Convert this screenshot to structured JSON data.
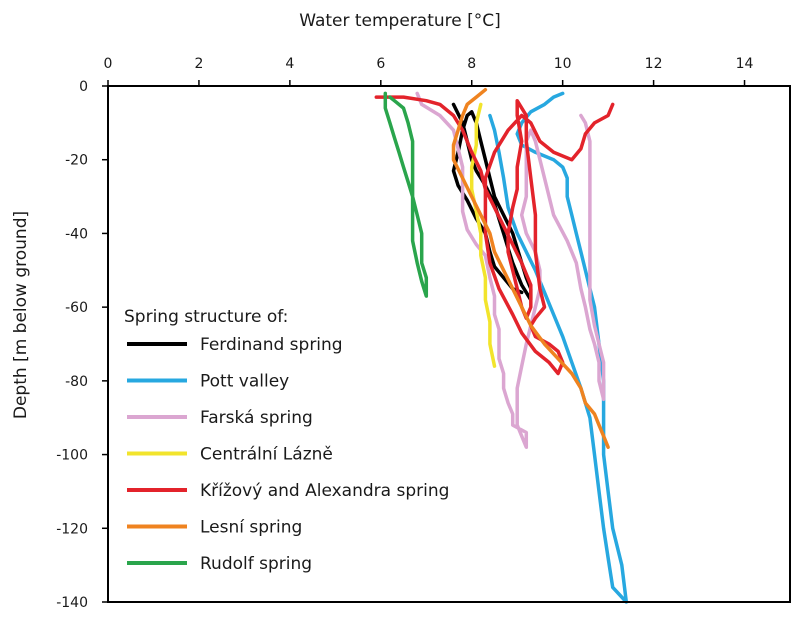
{
  "chart_data": {
    "type": "line",
    "title": "",
    "xlabel": "Water temperature [°C]",
    "ylabel": "Depth [m below ground]",
    "xlim": [
      0,
      15
    ],
    "ylim": [
      -140,
      0
    ],
    "x_ticks": [
      0,
      2,
      4,
      6,
      8,
      10,
      12,
      14
    ],
    "x_tick_labels": [
      "0",
      "2",
      "4",
      "6",
      "8",
      "10",
      "12",
      "14"
    ],
    "y_ticks": [
      0,
      -20,
      -40,
      -60,
      -80,
      -100,
      -120,
      -140
    ],
    "y_tick_labels": [
      "0",
      "-20",
      "-40",
      "-60",
      "-80",
      "-100",
      "-120",
      "-140"
    ],
    "x_axis_position": "top",
    "grid": false,
    "legend": {
      "title": "Spring structure of:",
      "position": "bottom-left"
    },
    "series": [
      {
        "name": "Ferdinand spring",
        "color": "#000000",
        "points": [
          [
            7.6,
            -5
          ],
          [
            7.8,
            -10
          ],
          [
            7.9,
            -15
          ],
          [
            8.0,
            -20
          ],
          [
            8.1,
            -23
          ],
          [
            8.3,
            -27
          ],
          [
            8.5,
            -32
          ],
          [
            8.6,
            -36
          ],
          [
            8.7,
            -40
          ],
          [
            8.8,
            -44
          ],
          [
            8.9,
            -48
          ],
          [
            9.0,
            -51
          ],
          [
            9.1,
            -54
          ],
          [
            9.2,
            -56
          ],
          [
            9.3,
            -58
          ],
          [
            9.3,
            -55
          ],
          [
            9.2,
            -52
          ],
          [
            9.1,
            -48
          ],
          [
            9.0,
            -44
          ],
          [
            8.9,
            -40
          ],
          [
            8.7,
            -35
          ],
          [
            8.5,
            -30
          ],
          [
            8.4,
            -25
          ],
          [
            8.3,
            -20
          ],
          [
            8.2,
            -15
          ],
          [
            8.1,
            -10
          ],
          [
            8.0,
            -7
          ],
          [
            7.9,
            -8
          ],
          [
            7.8,
            -12
          ],
          [
            7.7,
            -18
          ],
          [
            7.6,
            -23
          ],
          [
            7.7,
            -27
          ],
          [
            7.9,
            -31
          ],
          [
            8.1,
            -36
          ],
          [
            8.3,
            -40
          ],
          [
            8.4,
            -45
          ],
          [
            8.5,
            -49
          ],
          [
            8.7,
            -52
          ],
          [
            8.9,
            -55
          ],
          [
            9.1,
            -56
          ]
        ]
      },
      {
        "name": "Pott valley",
        "color": "#27a8e0",
        "points": [
          [
            10.0,
            -2
          ],
          [
            9.8,
            -3
          ],
          [
            9.6,
            -5
          ],
          [
            9.3,
            -7
          ],
          [
            9.1,
            -10
          ],
          [
            9.0,
            -13
          ],
          [
            9.1,
            -16
          ],
          [
            9.4,
            -18
          ],
          [
            9.8,
            -20
          ],
          [
            10.0,
            -22
          ],
          [
            10.1,
            -25
          ],
          [
            10.1,
            -30
          ],
          [
            10.2,
            -35
          ],
          [
            10.3,
            -40
          ],
          [
            10.4,
            -45
          ],
          [
            10.5,
            -50
          ],
          [
            10.6,
            -55
          ],
          [
            10.7,
            -60
          ],
          [
            10.8,
            -70
          ],
          [
            10.9,
            -80
          ],
          [
            10.9,
            -90
          ],
          [
            10.9,
            -100
          ],
          [
            11.0,
            -110
          ],
          [
            11.1,
            -120
          ],
          [
            11.3,
            -130
          ],
          [
            11.4,
            -140
          ],
          [
            11.1,
            -136
          ],
          [
            11.0,
            -128
          ],
          [
            10.9,
            -120
          ],
          [
            10.8,
            -110
          ],
          [
            10.7,
            -100
          ],
          [
            10.6,
            -90
          ],
          [
            10.4,
            -82
          ],
          [
            10.2,
            -75
          ],
          [
            10.0,
            -68
          ],
          [
            9.8,
            -62
          ],
          [
            9.6,
            -56
          ],
          [
            9.4,
            -50
          ],
          [
            9.2,
            -45
          ],
          [
            9.0,
            -40
          ],
          [
            8.8,
            -33
          ],
          [
            8.7,
            -25
          ],
          [
            8.6,
            -18
          ],
          [
            8.5,
            -12
          ],
          [
            8.4,
            -8
          ]
        ]
      },
      {
        "name": "Farská spring",
        "color": "#dba6d1",
        "points": [
          [
            6.8,
            -2
          ],
          [
            6.9,
            -5
          ],
          [
            7.3,
            -8
          ],
          [
            7.6,
            -12
          ],
          [
            7.7,
            -17
          ],
          [
            7.8,
            -22
          ],
          [
            7.8,
            -28
          ],
          [
            7.8,
            -34
          ],
          [
            7.9,
            -39
          ],
          [
            8.1,
            -43
          ],
          [
            8.3,
            -46
          ],
          [
            8.4,
            -52
          ],
          [
            8.5,
            -57
          ],
          [
            8.5,
            -62
          ],
          [
            8.6,
            -66
          ],
          [
            8.6,
            -70
          ],
          [
            8.6,
            -74
          ],
          [
            8.7,
            -78
          ],
          [
            8.7,
            -82
          ],
          [
            8.8,
            -86
          ],
          [
            8.9,
            -89
          ],
          [
            8.9,
            -92
          ],
          [
            9.2,
            -94
          ],
          [
            9.2,
            -97
          ],
          [
            9.2,
            -98
          ],
          [
            9.1,
            -95
          ],
          [
            9.0,
            -92
          ],
          [
            9.0,
            -88
          ],
          [
            9.0,
            -82
          ],
          [
            9.1,
            -76
          ],
          [
            9.2,
            -70
          ],
          [
            9.3,
            -65
          ],
          [
            9.4,
            -60
          ],
          [
            9.5,
            -55
          ],
          [
            9.5,
            -50
          ],
          [
            9.4,
            -45
          ],
          [
            9.2,
            -40
          ],
          [
            9.1,
            -35
          ],
          [
            9.2,
            -30
          ],
          [
            9.2,
            -25
          ],
          [
            9.2,
            -20
          ],
          [
            9.2,
            -15
          ],
          [
            9.3,
            -12
          ],
          [
            9.4,
            -15
          ],
          [
            9.6,
            -25
          ],
          [
            9.8,
            -35
          ],
          [
            10.1,
            -42
          ],
          [
            10.3,
            -48
          ],
          [
            10.4,
            -55
          ],
          [
            10.5,
            -60
          ],
          [
            10.6,
            -66
          ],
          [
            10.7,
            -70
          ],
          [
            10.8,
            -75
          ],
          [
            10.8,
            -80
          ],
          [
            10.9,
            -85
          ],
          [
            10.9,
            -80
          ],
          [
            10.9,
            -75
          ],
          [
            10.8,
            -70
          ],
          [
            10.7,
            -65
          ],
          [
            10.6,
            -58
          ],
          [
            10.6,
            -50
          ],
          [
            10.6,
            -40
          ],
          [
            10.6,
            -30
          ],
          [
            10.6,
            -20
          ],
          [
            10.6,
            -15
          ],
          [
            10.5,
            -10
          ],
          [
            10.4,
            -8
          ]
        ]
      },
      {
        "name": "Centrální Lázně",
        "color": "#f2e42c",
        "points": [
          [
            8.2,
            -5
          ],
          [
            8.1,
            -10
          ],
          [
            8.1,
            -16
          ],
          [
            8.0,
            -22
          ],
          [
            8.0,
            -28
          ],
          [
            8.1,
            -34
          ],
          [
            8.2,
            -40
          ],
          [
            8.2,
            -46
          ],
          [
            8.3,
            -52
          ],
          [
            8.3,
            -58
          ],
          [
            8.4,
            -64
          ],
          [
            8.4,
            -70
          ],
          [
            8.5,
            -76
          ]
        ]
      },
      {
        "name": "Křížový and Alexandra spring",
        "color": "#e3232b",
        "points": [
          [
            5.9,
            -3
          ],
          [
            6.5,
            -3
          ],
          [
            7.0,
            -4
          ],
          [
            7.3,
            -5
          ],
          [
            7.6,
            -8
          ],
          [
            7.8,
            -12
          ],
          [
            8.0,
            -18
          ],
          [
            8.2,
            -23
          ],
          [
            8.3,
            -28
          ],
          [
            8.5,
            -33
          ],
          [
            8.7,
            -38
          ],
          [
            8.9,
            -43
          ],
          [
            9.1,
            -48
          ],
          [
            9.3,
            -54
          ],
          [
            9.3,
            -60
          ],
          [
            9.2,
            -63
          ],
          [
            9.1,
            -60
          ],
          [
            9.0,
            -55
          ],
          [
            8.9,
            -50
          ],
          [
            8.8,
            -45
          ],
          [
            8.8,
            -40
          ],
          [
            8.9,
            -33
          ],
          [
            9.0,
            -28
          ],
          [
            9.0,
            -22
          ],
          [
            9.1,
            -15
          ],
          [
            9.0,
            -8
          ],
          [
            9.0,
            -4
          ],
          [
            9.2,
            -8
          ],
          [
            9.2,
            -15
          ],
          [
            9.3,
            -25
          ],
          [
            9.4,
            -35
          ],
          [
            9.4,
            -45
          ],
          [
            9.5,
            -55
          ],
          [
            9.6,
            -60
          ],
          [
            9.4,
            -63
          ],
          [
            9.3,
            -65
          ],
          [
            9.4,
            -68
          ],
          [
            9.7,
            -70
          ],
          [
            9.9,
            -72
          ],
          [
            10.0,
            -75
          ],
          [
            9.9,
            -78
          ],
          [
            9.7,
            -75
          ],
          [
            9.4,
            -72
          ],
          [
            9.1,
            -67
          ],
          [
            8.9,
            -62
          ],
          [
            8.6,
            -55
          ],
          [
            8.4,
            -48
          ],
          [
            8.3,
            -40
          ],
          [
            8.3,
            -32
          ],
          [
            8.3,
            -25
          ],
          [
            8.5,
            -18
          ],
          [
            8.8,
            -12
          ],
          [
            9.1,
            -8
          ],
          [
            9.3,
            -10
          ],
          [
            9.5,
            -15
          ],
          [
            9.8,
            -18
          ],
          [
            10.2,
            -20
          ],
          [
            10.4,
            -17
          ],
          [
            10.5,
            -13
          ],
          [
            10.7,
            -10
          ],
          [
            11.0,
            -8
          ],
          [
            11.1,
            -5
          ]
        ]
      },
      {
        "name": "Lesní spring",
        "color": "#ef8320",
        "points": [
          [
            8.3,
            -1
          ],
          [
            8.1,
            -3
          ],
          [
            7.9,
            -5
          ],
          [
            7.8,
            -8
          ],
          [
            7.7,
            -12
          ],
          [
            7.6,
            -16
          ],
          [
            7.6,
            -20
          ],
          [
            7.8,
            -25
          ],
          [
            8.0,
            -30
          ],
          [
            8.2,
            -35
          ],
          [
            8.4,
            -40
          ],
          [
            8.5,
            -45
          ],
          [
            8.7,
            -50
          ],
          [
            8.9,
            -55
          ],
          [
            9.1,
            -60
          ],
          [
            9.3,
            -65
          ],
          [
            9.6,
            -70
          ],
          [
            9.9,
            -74
          ],
          [
            10.2,
            -78
          ],
          [
            10.4,
            -82
          ],
          [
            10.5,
            -86
          ],
          [
            10.7,
            -89
          ],
          [
            10.8,
            -92
          ],
          [
            10.9,
            -95
          ],
          [
            11.0,
            -98
          ],
          [
            10.9,
            -95
          ],
          [
            10.8,
            -92
          ],
          [
            10.7,
            -89
          ]
        ]
      },
      {
        "name": "Rudolf spring",
        "color": "#2aa54c",
        "points": [
          [
            6.1,
            -2
          ],
          [
            6.1,
            -6
          ],
          [
            6.2,
            -10
          ],
          [
            6.3,
            -14
          ],
          [
            6.4,
            -18
          ],
          [
            6.5,
            -22
          ],
          [
            6.6,
            -26
          ],
          [
            6.7,
            -30
          ],
          [
            6.8,
            -35
          ],
          [
            6.9,
            -40
          ],
          [
            6.9,
            -44
          ],
          [
            6.9,
            -48
          ],
          [
            7.0,
            -52
          ],
          [
            7.0,
            -57
          ],
          [
            6.9,
            -53
          ],
          [
            6.8,
            -48
          ],
          [
            6.7,
            -42
          ],
          [
            6.7,
            -36
          ],
          [
            6.7,
            -30
          ],
          [
            6.7,
            -25
          ],
          [
            6.7,
            -20
          ],
          [
            6.7,
            -15
          ],
          [
            6.6,
            -10
          ],
          [
            6.5,
            -6
          ],
          [
            6.3,
            -4
          ],
          [
            6.2,
            -3
          ]
        ]
      }
    ]
  }
}
